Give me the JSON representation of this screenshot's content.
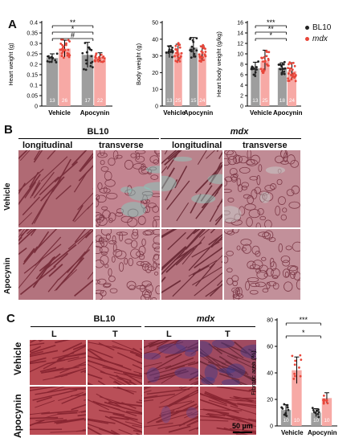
{
  "panel_labels": {
    "a": "A",
    "b": "B",
    "c": "C"
  },
  "legend": {
    "series1": "BL10",
    "series2": "mdx",
    "color1": "#222222",
    "color2": "#e8463a"
  },
  "panel_b": {
    "group1": "BL10",
    "group2": "mdx",
    "col1": "longitudinal",
    "col2": "transverse",
    "col3": "longitudinal",
    "col4": "transverse",
    "row1": "Vehicle",
    "row2": "Apocynin"
  },
  "panel_c": {
    "group1": "BL10",
    "group2": "mdx",
    "col1": "L",
    "col2": "T",
    "col3": "L",
    "col4": "T",
    "row1": "Vehicle",
    "row2": "Apocynin",
    "scale_bar": "50 µm"
  },
  "colors": {
    "bl10_bar": "#9e9e9e",
    "mdx_bar": "#f7a9a5",
    "mdx_point": "#e8463a",
    "bl10_point": "#222222"
  },
  "chart_data": [
    {
      "type": "bar",
      "title": "",
      "ylabel": "Heart weight (g)",
      "categories": [
        "Vehicle",
        "Apocynin"
      ],
      "ylim": [
        0,
        0.4
      ],
      "yticks": [
        "0",
        "0.05",
        "0.1",
        "0.15",
        "0.2",
        "0.25",
        "0.3",
        "0.35",
        "0.4"
      ],
      "series": [
        {
          "name": "BL10",
          "values": [
            0.23,
            0.245
          ],
          "errors": [
            0.02,
            0.06
          ],
          "n": [
            "13",
            "17"
          ]
        },
        {
          "name": "mdx",
          "values": [
            0.275,
            0.235
          ],
          "errors": [
            0.04,
            0.02
          ],
          "n": [
            "26",
            "22"
          ]
        }
      ],
      "significance": [
        {
          "label": "**",
          "level": "top"
        },
        {
          "label": "*",
          "level": "mid"
        },
        {
          "label": "#",
          "level": "low"
        }
      ]
    },
    {
      "type": "bar",
      "title": "",
      "ylabel": "Body weight (g)",
      "categories": [
        "Vehicle",
        "Apocynin"
      ],
      "ylim": [
        0,
        50
      ],
      "yticks": [
        "0",
        "10",
        "20",
        "30",
        "40",
        "50"
      ],
      "series": [
        {
          "name": "BL10",
          "values": [
            32.5,
            35.0
          ],
          "errors": [
            3.5,
            6.0
          ],
          "n": [
            "13",
            "15"
          ]
        },
        {
          "name": "mdx",
          "values": [
            32.0,
            31.5
          ],
          "errors": [
            5.0,
            4.5
          ],
          "n": [
            "25",
            "24"
          ]
        }
      ],
      "significance": []
    },
    {
      "type": "bar",
      "title": "",
      "ylabel": "Heart body weight (g/kg)",
      "categories": [
        "Vehicle",
        "Apocynin"
      ],
      "ylim": [
        0,
        16
      ],
      "yticks": [
        "0",
        "2",
        "4",
        "6",
        "8",
        "10",
        "12",
        "14",
        "16"
      ],
      "series": [
        {
          "name": "BL10",
          "values": [
            7.2,
            7.3
          ],
          "errors": [
            1.2,
            1.0
          ],
          "n": [
            "13",
            "18"
          ]
        },
        {
          "name": "mdx",
          "values": [
            8.7,
            6.7
          ],
          "errors": [
            2.0,
            1.6
          ],
          "n": [
            "25",
            "24"
          ]
        }
      ],
      "significance": [
        {
          "label": "***",
          "level": "top"
        },
        {
          "label": "**",
          "level": "mid"
        },
        {
          "label": "*",
          "level": "low"
        }
      ]
    },
    {
      "type": "bar",
      "title": "",
      "ylabel": "Fibrotic area (%)",
      "categories": [
        "Vehicle",
        "Apocynin"
      ],
      "ylim": [
        0,
        80
      ],
      "yticks": [
        "0",
        "20",
        "40",
        "60",
        "80"
      ],
      "series": [
        {
          "name": "BL10",
          "values": [
            12,
            10
          ],
          "errors": [
            4,
            3
          ],
          "n": [
            "10",
            "10"
          ]
        },
        {
          "name": "mdx",
          "values": [
            42,
            21
          ],
          "errors": [
            10,
            4
          ],
          "n": [
            "10",
            "10"
          ]
        }
      ],
      "significance": [
        {
          "label": "***",
          "level": "top"
        },
        {
          "label": "*",
          "level": "low"
        }
      ]
    }
  ]
}
